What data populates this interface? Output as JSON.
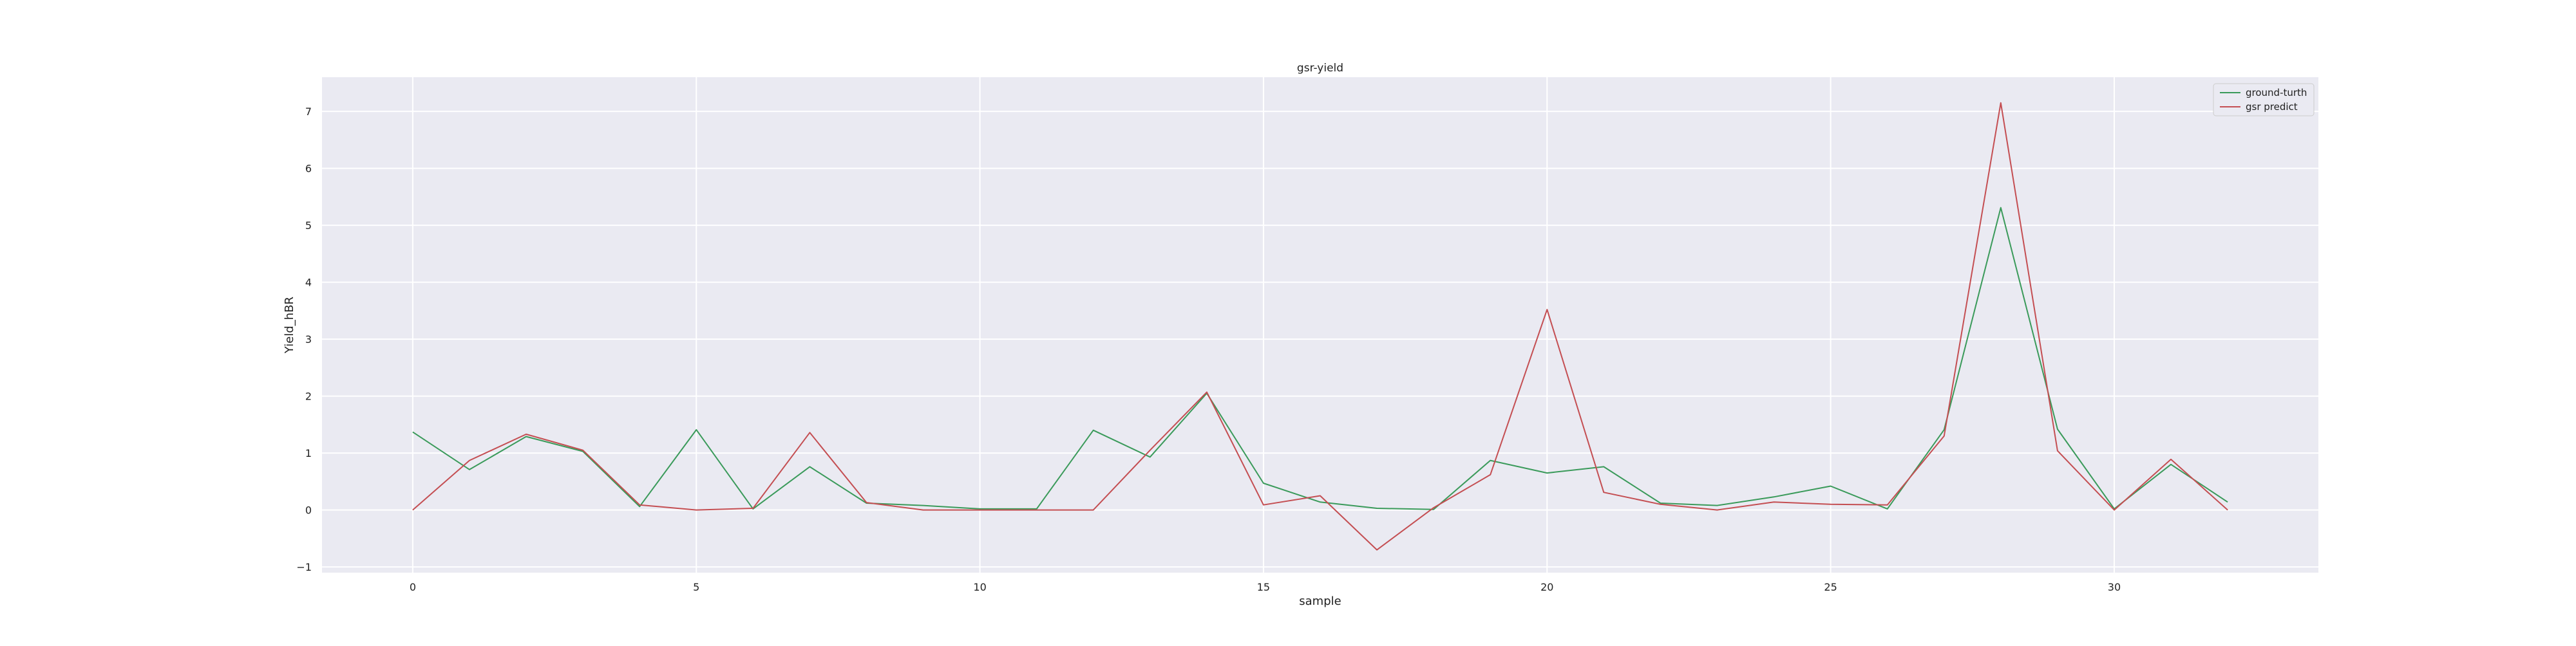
{
  "chart_data": {
    "type": "line",
    "title": "gsr-yield",
    "xlabel": "sample",
    "ylabel": "Yield_hBR",
    "xlim": [
      -1.6,
      33.6
    ],
    "ylim": [
      -1.1,
      7.6
    ],
    "xticks": [
      0,
      5,
      10,
      15,
      20,
      25,
      30
    ],
    "xtick_labels": [
      "0",
      "5",
      "10",
      "15",
      "20",
      "25",
      "30"
    ],
    "yticks": [
      -1,
      0,
      1,
      2,
      3,
      4,
      5,
      6,
      7
    ],
    "ytick_labels": [
      "−1",
      "0",
      "1",
      "2",
      "3",
      "4",
      "5",
      "6",
      "7"
    ],
    "grid": true,
    "legend_position": "top-right",
    "x": [
      0,
      1,
      2,
      3,
      4,
      5,
      6,
      7,
      8,
      9,
      10,
      11,
      12,
      13,
      14,
      15,
      16,
      17,
      18,
      19,
      20,
      21,
      22,
      23,
      24,
      25,
      26,
      27,
      28,
      29,
      30,
      31,
      32
    ],
    "series": [
      {
        "name": "ground-turth",
        "color": "#3a9a5a",
        "values": [
          1.37,
          0.71,
          1.29,
          1.03,
          0.06,
          1.41,
          0.02,
          0.76,
          0.12,
          0.08,
          0.02,
          0.02,
          1.4,
          0.93,
          2.05,
          0.47,
          0.14,
          0.03,
          0.01,
          0.87,
          0.65,
          0.76,
          0.12,
          0.08,
          0.23,
          0.42,
          0.02,
          1.41,
          5.31,
          1.42,
          0.02,
          0.8,
          0.14
        ]
      },
      {
        "name": "gsr predict",
        "color": "#c44e52",
        "values": [
          0.0,
          0.87,
          1.33,
          1.05,
          0.09,
          0.0,
          0.03,
          1.36,
          0.13,
          0.0,
          0.0,
          0.0,
          0.0,
          1.05,
          2.07,
          0.09,
          0.25,
          -0.7,
          0.04,
          0.62,
          3.52,
          0.31,
          0.1,
          0.0,
          0.14,
          0.1,
          0.09,
          1.3,
          7.15,
          1.04,
          0.0,
          0.89,
          0.0
        ]
      }
    ]
  }
}
